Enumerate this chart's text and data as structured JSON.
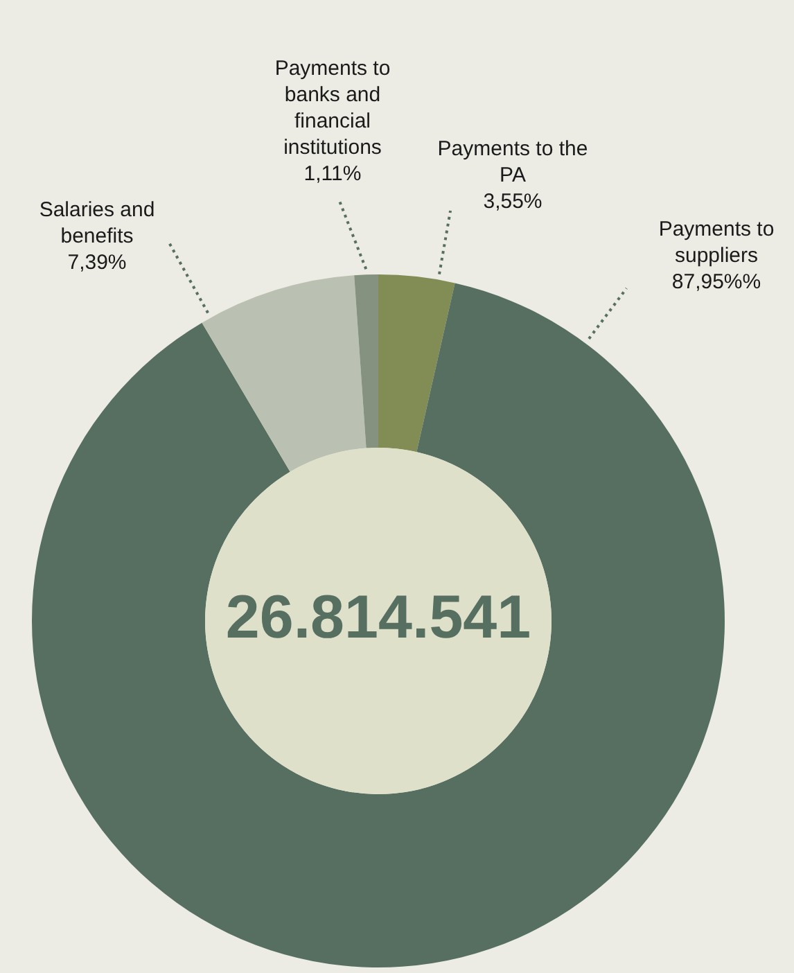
{
  "chart_data": {
    "type": "donut",
    "categories": [
      "Payments to the PA",
      "Payments to suppliers",
      "Salaries and benefits",
      "Payments to banks and financial institutions"
    ],
    "values": [
      3.55,
      87.95,
      7.39,
      1.11
    ],
    "value_labels": [
      "3,55%",
      "87,95%%",
      "7,39%",
      "1,11%"
    ],
    "colors": [
      "#828c55",
      "#566f60",
      "#bbc1b2",
      "#84927f"
    ],
    "annotations": [
      "26.814.541"
    ],
    "legend": false
  }
}
